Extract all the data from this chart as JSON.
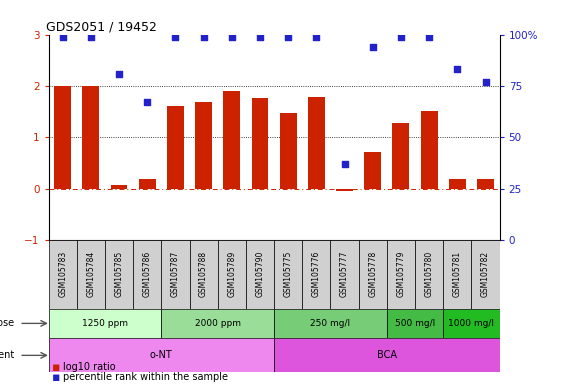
{
  "title": "GDS2051 / 19452",
  "samples": [
    "GSM105783",
    "GSM105784",
    "GSM105785",
    "GSM105786",
    "GSM105787",
    "GSM105788",
    "GSM105789",
    "GSM105790",
    "GSM105775",
    "GSM105776",
    "GSM105777",
    "GSM105778",
    "GSM105779",
    "GSM105780",
    "GSM105781",
    "GSM105782"
  ],
  "log10_ratio": [
    2.0,
    2.0,
    0.07,
    0.18,
    1.6,
    1.68,
    1.9,
    1.77,
    1.48,
    1.78,
    -0.04,
    0.72,
    1.27,
    1.52,
    0.18,
    0.18
  ],
  "percentile_rank_pct": [
    99,
    99,
    81,
    67,
    99,
    99,
    99,
    99,
    99,
    99,
    37,
    94,
    99,
    99,
    83,
    77
  ],
  "bar_color": "#cc2200",
  "dot_color": "#2222cc",
  "dose_groups": [
    {
      "label": "1250 ppm",
      "start": 0,
      "end": 4,
      "color": "#ccffcc"
    },
    {
      "label": "2000 ppm",
      "start": 4,
      "end": 8,
      "color": "#99dd99"
    },
    {
      "label": "250 mg/l",
      "start": 8,
      "end": 12,
      "color": "#77cc77"
    },
    {
      "label": "500 mg/l",
      "start": 12,
      "end": 14,
      "color": "#44bb44"
    },
    {
      "label": "1000 mg/l",
      "start": 14,
      "end": 16,
      "color": "#22bb22"
    }
  ],
  "agent_groups": [
    {
      "label": "o-NT",
      "start": 0,
      "end": 8,
      "color": "#ee88ee"
    },
    {
      "label": "BCA",
      "start": 8,
      "end": 16,
      "color": "#dd55dd"
    }
  ],
  "ylim": [
    -1,
    3
  ],
  "yticks_left": [
    -1,
    0,
    1,
    2,
    3
  ],
  "y2_ticks_pct": [
    0,
    25,
    50,
    75,
    100
  ],
  "dotted_hlines": [
    1,
    2
  ],
  "legend_bar_label": "log10 ratio",
  "legend_dot_label": "percentile rank within the sample",
  "bar_width": 0.6,
  "background_color": "#ffffff"
}
